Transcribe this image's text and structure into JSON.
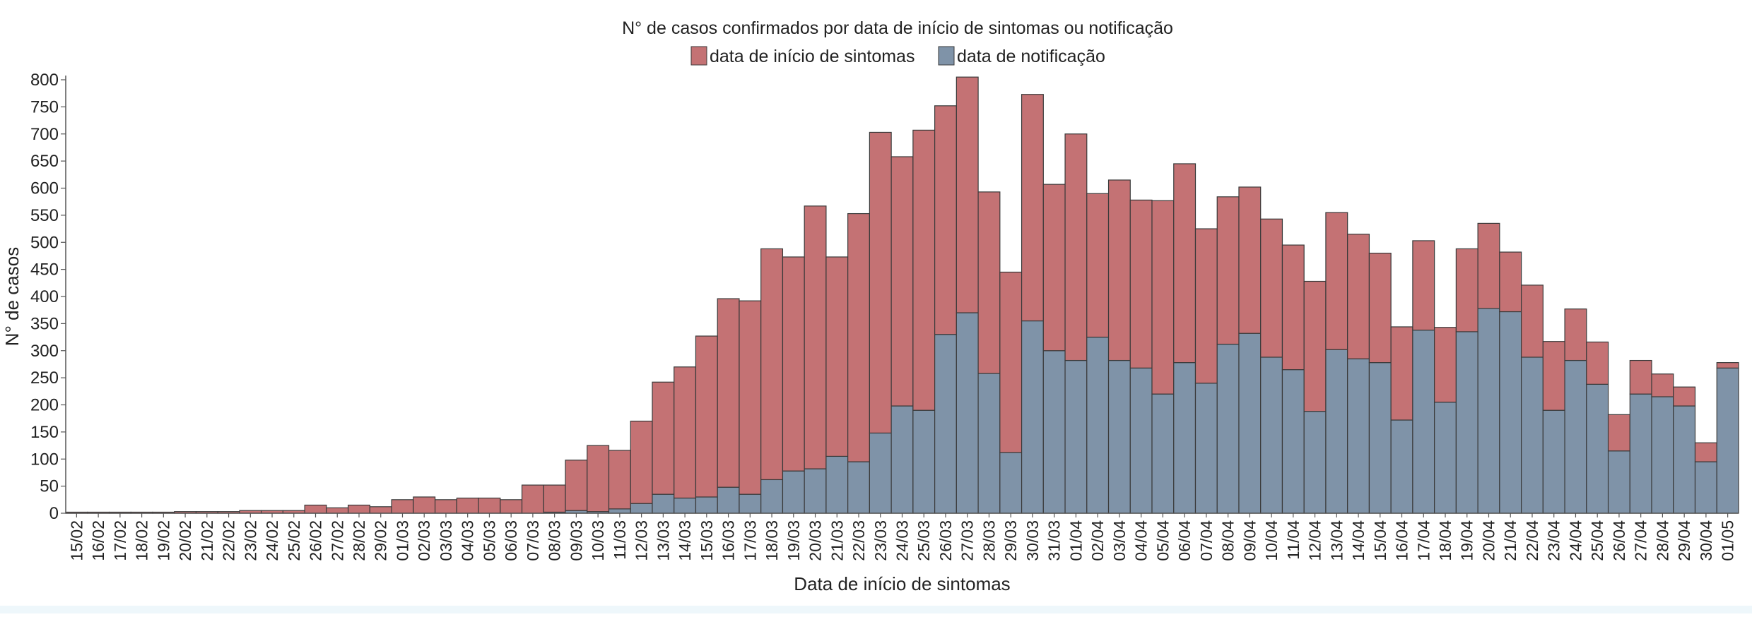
{
  "chart_data": {
    "type": "bar",
    "stacked": true,
    "title": "N° de casos confirmados por data de início de sintomas ou notificação",
    "xlabel": "Data de início de sintomas",
    "ylabel": "N° de casos",
    "ylim": [
      0,
      800
    ],
    "yticks": [
      0,
      50,
      100,
      150,
      200,
      250,
      300,
      350,
      400,
      450,
      500,
      550,
      600,
      650,
      700,
      750,
      800
    ],
    "grid": false,
    "legend_position": "top-center",
    "categories": [
      "15/02",
      "16/02",
      "17/02",
      "18/02",
      "19/02",
      "20/02",
      "21/02",
      "22/02",
      "23/02",
      "24/02",
      "25/02",
      "26/02",
      "27/02",
      "28/02",
      "29/02",
      "01/03",
      "02/03",
      "03/03",
      "04/03",
      "05/03",
      "06/03",
      "07/03",
      "08/03",
      "09/03",
      "10/03",
      "11/03",
      "12/03",
      "13/03",
      "14/03",
      "15/03",
      "16/03",
      "17/03",
      "18/03",
      "19/03",
      "20/03",
      "21/03",
      "22/03",
      "23/03",
      "24/03",
      "25/03",
      "26/03",
      "27/03",
      "28/03",
      "29/03",
      "30/03",
      "31/03",
      "01/04",
      "02/04",
      "03/04",
      "04/04",
      "05/04",
      "06/04",
      "07/04",
      "08/04",
      "09/04",
      "10/04",
      "11/04",
      "12/04",
      "13/04",
      "14/04",
      "15/04",
      "16/04",
      "17/04",
      "18/04",
      "19/04",
      "20/04",
      "21/04",
      "22/04",
      "23/04",
      "24/04",
      "25/04",
      "26/04",
      "27/04",
      "28/04",
      "29/04",
      "30/04",
      "01/05"
    ],
    "series": [
      {
        "name": "data de notificação",
        "color": "#7f93a8",
        "values": [
          0,
          0,
          0,
          0,
          0,
          0,
          0,
          0,
          0,
          0,
          0,
          0,
          0,
          0,
          0,
          0,
          0,
          0,
          0,
          0,
          0,
          0,
          2,
          5,
          3,
          8,
          18,
          35,
          28,
          30,
          48,
          35,
          62,
          78,
          82,
          105,
          95,
          148,
          198,
          190,
          330,
          370,
          258,
          112,
          355,
          300,
          282,
          325,
          282,
          268,
          220,
          278,
          240,
          312,
          332,
          288,
          265,
          188,
          302,
          285,
          278,
          172,
          338,
          205,
          335,
          378,
          372,
          288,
          190,
          282,
          238,
          115,
          220,
          215,
          198,
          95,
          268
        ]
      },
      {
        "name": "data de início de sintomas",
        "color": "#c47274",
        "values": [
          2,
          2,
          2,
          2,
          2,
          3,
          3,
          3,
          5,
          5,
          5,
          15,
          10,
          15,
          12,
          25,
          30,
          25,
          28,
          28,
          25,
          52,
          50,
          93,
          122,
          108,
          152,
          207,
          242,
          297,
          348,
          357,
          426,
          395,
          485,
          368,
          458,
          555,
          460,
          517,
          422,
          435,
          335,
          333,
          418,
          307,
          418,
          265,
          333,
          310,
          357,
          367,
          285,
          272,
          270,
          255,
          230,
          240,
          253,
          230,
          202,
          172,
          165,
          138,
          153,
          157,
          110,
          133,
          127,
          95,
          78,
          67,
          62,
          42,
          35,
          35,
          10
        ]
      }
    ]
  }
}
